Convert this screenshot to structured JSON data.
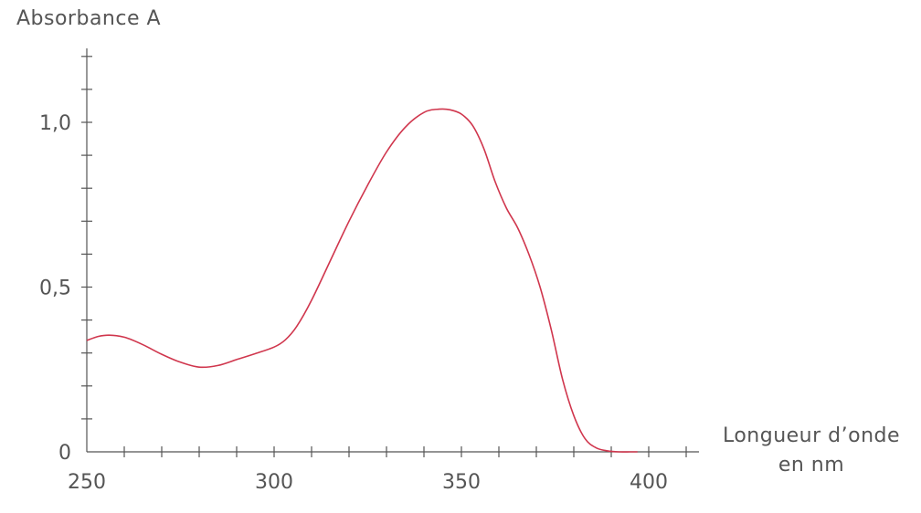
{
  "chart_data": {
    "type": "line",
    "title": "",
    "ylabel": "Absorbance A",
    "xlabel_line1": "Longueur d’onde",
    "xlabel_line2": "en nm",
    "xlim": [
      250,
      415
    ],
    "ylim": [
      0,
      1.23
    ],
    "x_ticks": [
      250,
      300,
      350,
      400
    ],
    "x_tick_labels": [
      "250",
      "300",
      "350",
      "400"
    ],
    "y_ticks": [
      0,
      0.5,
      1.0
    ],
    "y_tick_labels": [
      "0",
      "0,5",
      "1,0"
    ],
    "x_minor_step": 10,
    "y_minor_step": 0.1,
    "grid": false,
    "colors": {
      "line": "#d0364d",
      "axis": "#555555"
    },
    "series": [
      {
        "x": [
          250,
          253,
          256,
          260,
          265,
          270,
          275,
          280,
          285,
          290,
          295,
          300,
          303,
          306,
          310,
          315,
          320,
          325,
          330,
          335,
          340,
          344,
          347,
          350,
          353,
          356,
          359,
          362,
          365,
          368,
          371,
          374,
          377,
          380,
          383,
          386,
          389,
          392,
          395,
          397
        ],
        "y": [
          0.338,
          0.35,
          0.354,
          0.348,
          0.325,
          0.296,
          0.272,
          0.257,
          0.262,
          0.28,
          0.298,
          0.318,
          0.34,
          0.38,
          0.46,
          0.58,
          0.7,
          0.81,
          0.91,
          0.985,
          1.03,
          1.04,
          1.038,
          1.025,
          0.99,
          0.92,
          0.82,
          0.74,
          0.68,
          0.6,
          0.5,
          0.37,
          0.22,
          0.11,
          0.04,
          0.012,
          0.003,
          0.0,
          0.0,
          0.0
        ]
      }
    ]
  }
}
